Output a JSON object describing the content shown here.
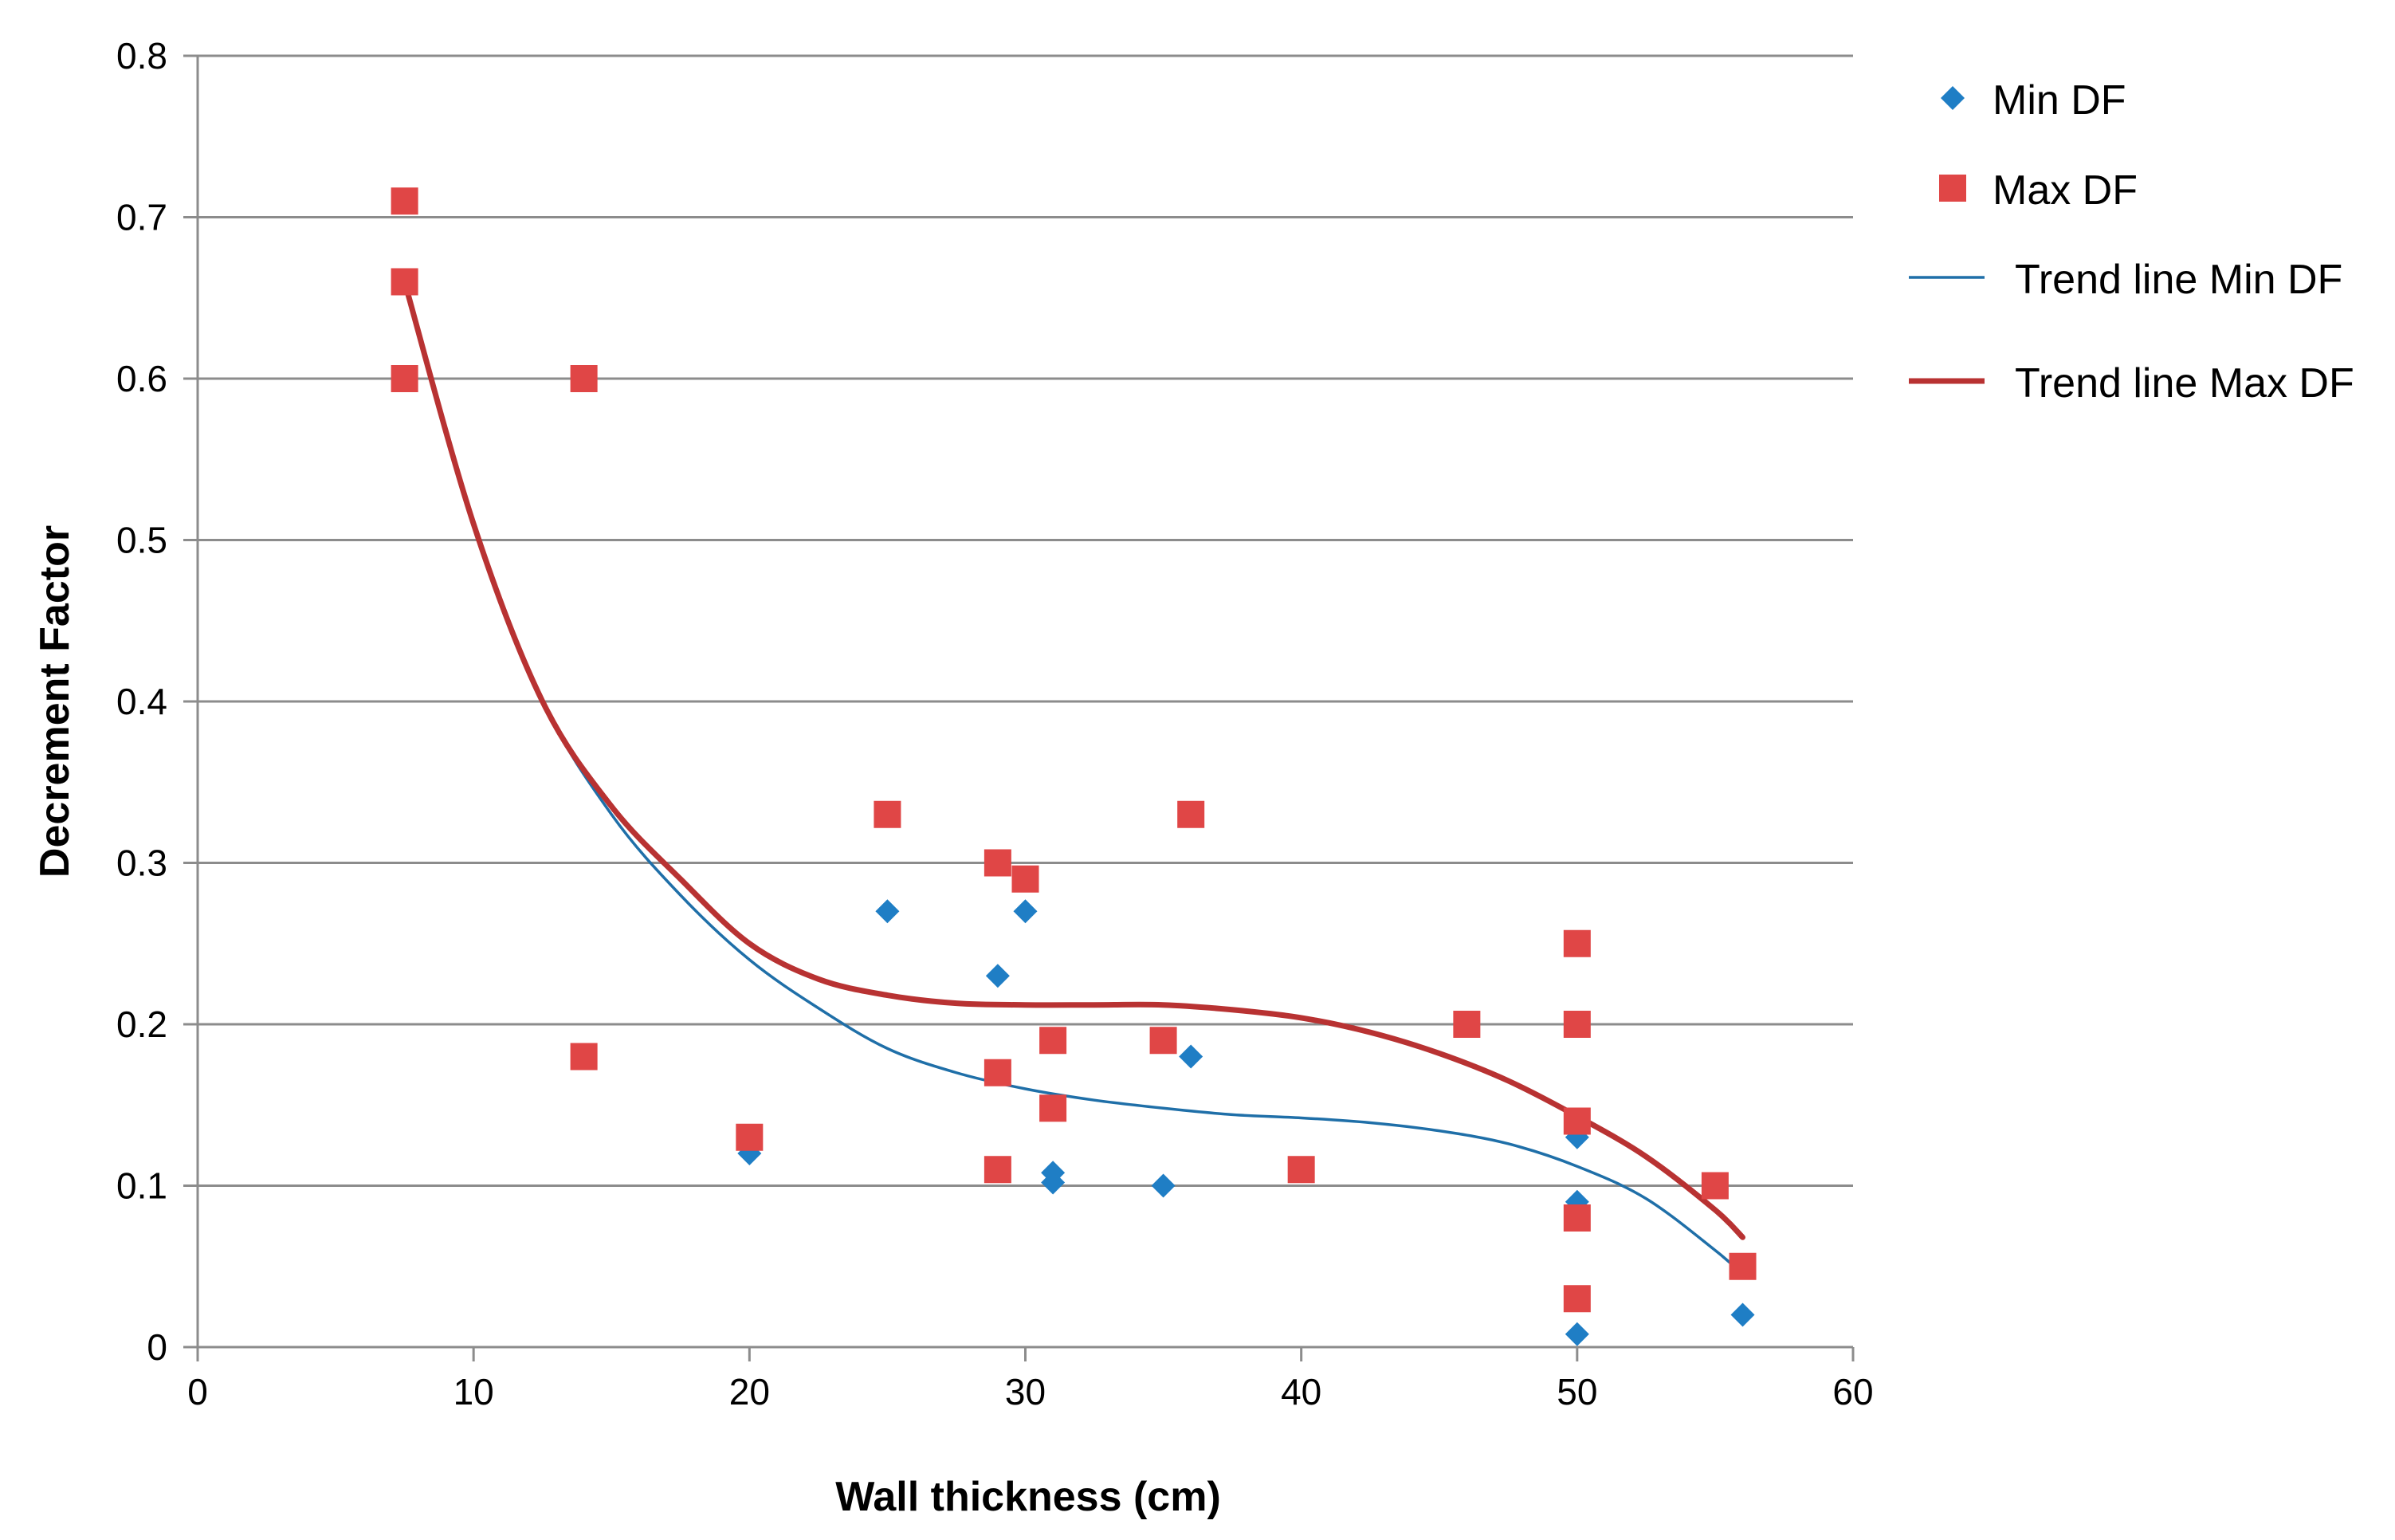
{
  "chart_data": {
    "type": "scatter",
    "title": "",
    "xlabel": "Wall thickness (cm)",
    "ylabel": "Decrement Factor",
    "xlim": [
      0,
      60
    ],
    "ylim": [
      0,
      0.8
    ],
    "x_ticks": [
      0,
      10,
      20,
      30,
      40,
      50,
      60
    ],
    "y_ticks": [
      0,
      0.1,
      0.2,
      0.3,
      0.4,
      0.5,
      0.6,
      0.7,
      0.8
    ],
    "y_tick_labels": [
      "0",
      "0.1",
      "0.2",
      "0.3",
      "0.4",
      "0.5",
      "0.6",
      "0.7",
      "0.8"
    ],
    "grid": "horizontal",
    "legend_position": "right",
    "series": [
      {
        "name": "Min DF",
        "marker": "diamond",
        "color": "#1f7ec5",
        "points": [
          [
            7.5,
            0.66
          ],
          [
            20,
            0.12
          ],
          [
            25,
            0.27
          ],
          [
            29,
            0.23
          ],
          [
            30,
            0.27
          ],
          [
            31,
            0.108
          ],
          [
            31,
            0.102
          ],
          [
            35,
            0.1
          ],
          [
            36,
            0.18
          ],
          [
            50,
            0.13
          ],
          [
            50,
            0.09
          ],
          [
            50,
            0.008
          ],
          [
            56,
            0.02
          ]
        ]
      },
      {
        "name": "Max DF",
        "marker": "square",
        "color": "#e04646",
        "points": [
          [
            7.5,
            0.71
          ],
          [
            7.5,
            0.66
          ],
          [
            7.5,
            0.6
          ],
          [
            14,
            0.6
          ],
          [
            14,
            0.18
          ],
          [
            20,
            0.13
          ],
          [
            25,
            0.33
          ],
          [
            29,
            0.3
          ],
          [
            29,
            0.17
          ],
          [
            29,
            0.11
          ],
          [
            30,
            0.29
          ],
          [
            31,
            0.19
          ],
          [
            31,
            0.148
          ],
          [
            35,
            0.19
          ],
          [
            36,
            0.33
          ],
          [
            40,
            0.11
          ],
          [
            46,
            0.2
          ],
          [
            50,
            0.25
          ],
          [
            50,
            0.2
          ],
          [
            50,
            0.14
          ],
          [
            50,
            0.08
          ],
          [
            50,
            0.03
          ],
          [
            55,
            0.1
          ],
          [
            56,
            0.05
          ]
        ]
      },
      {
        "name": "Trend line Min DF",
        "type": "line",
        "color": "#1f6fa8",
        "points": [
          [
            7.5,
            0.66
          ],
          [
            10,
            0.51
          ],
          [
            12.5,
            0.4
          ],
          [
            15,
            0.33
          ],
          [
            17.5,
            0.28
          ],
          [
            20,
            0.24
          ],
          [
            22.5,
            0.21
          ],
          [
            25,
            0.185
          ],
          [
            27.5,
            0.17
          ],
          [
            30,
            0.16
          ],
          [
            32.5,
            0.153
          ],
          [
            35,
            0.148
          ],
          [
            37.5,
            0.144
          ],
          [
            40,
            0.142
          ],
          [
            42.5,
            0.139
          ],
          [
            45,
            0.134
          ],
          [
            47.5,
            0.126
          ],
          [
            50,
            0.112
          ],
          [
            52.5,
            0.092
          ],
          [
            55,
            0.06
          ],
          [
            56,
            0.045
          ]
        ]
      },
      {
        "name": "Trend line Max DF",
        "type": "line",
        "color": "#b83232",
        "points": [
          [
            7.5,
            0.66
          ],
          [
            10,
            0.51
          ],
          [
            12.5,
            0.4
          ],
          [
            15,
            0.335
          ],
          [
            17.5,
            0.29
          ],
          [
            20,
            0.25
          ],
          [
            22.5,
            0.228
          ],
          [
            25,
            0.218
          ],
          [
            27.5,
            0.213
          ],
          [
            30,
            0.212
          ],
          [
            32.5,
            0.212
          ],
          [
            35,
            0.212
          ],
          [
            37.5,
            0.209
          ],
          [
            40,
            0.204
          ],
          [
            42.5,
            0.195
          ],
          [
            45,
            0.182
          ],
          [
            47.5,
            0.165
          ],
          [
            50,
            0.143
          ],
          [
            52.5,
            0.118
          ],
          [
            55,
            0.085
          ],
          [
            56,
            0.068
          ]
        ]
      }
    ]
  }
}
